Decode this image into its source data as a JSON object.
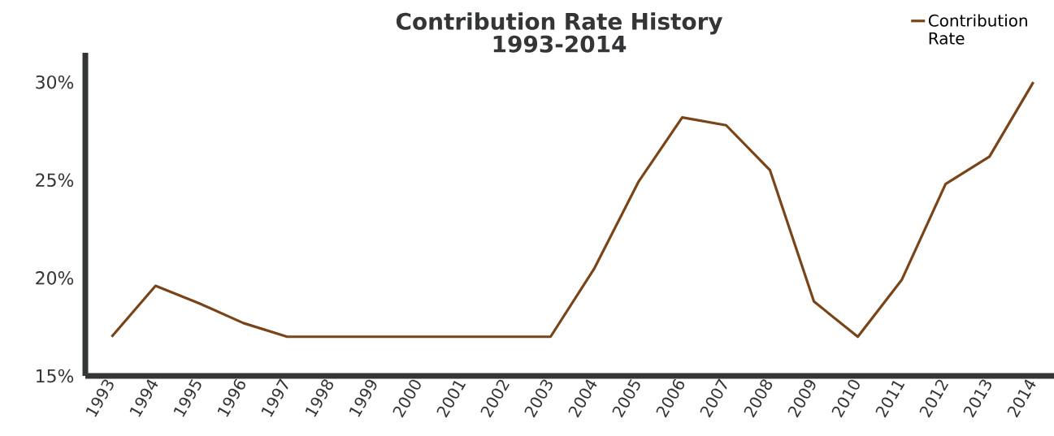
{
  "chart_data": {
    "type": "line",
    "title": "Contribution Rate History\n1993-2014",
    "categories": [
      "1993",
      "1994",
      "1995",
      "1996",
      "1997",
      "1998",
      "1999",
      "2000",
      "2001",
      "2002",
      "2003",
      "2004",
      "2005",
      "2006",
      "2007",
      "2008",
      "2009",
      "2010",
      "2011",
      "2012",
      "2013",
      "2014"
    ],
    "series": [
      {
        "name": "Contribution Rate",
        "color": "#7a4419",
        "values": [
          17.0,
          19.6,
          18.7,
          17.7,
          17.0,
          17.0,
          17.0,
          17.0,
          17.0,
          17.0,
          17.0,
          20.5,
          24.9,
          28.2,
          27.8,
          25.5,
          18.8,
          17.0,
          19.9,
          24.8,
          26.2,
          30.0
        ]
      }
    ],
    "ylim": [
      15,
      31.5
    ],
    "yticks": [
      {
        "value": 15,
        "label": "15%"
      },
      {
        "value": 20,
        "label": "20%"
      },
      {
        "value": 25,
        "label": "25%"
      },
      {
        "value": 30,
        "label": "30%"
      }
    ],
    "legend": "top right",
    "grid": false,
    "marker": "none",
    "line_style": "solid"
  }
}
